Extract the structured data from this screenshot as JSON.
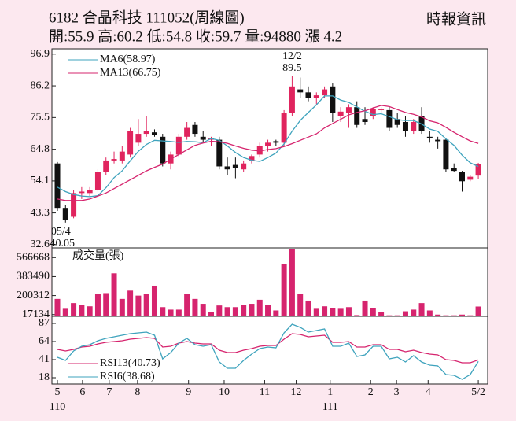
{
  "header": {
    "title": "6182 合晶科技 111052(周線圖)",
    "source": "時報資訊",
    "summary": "開:55.9 高:60.2 低:54.8 收:59.7 量:94880 漲 4.2"
  },
  "chart_data": [
    {
      "type": "candlestick",
      "up_color": "#e0245e",
      "down_color": "#111111",
      "open": [
        60,
        45,
        42,
        50,
        50,
        51,
        57,
        61,
        61,
        63,
        67,
        70,
        70.5,
        69,
        60,
        63,
        69,
        73,
        69,
        68,
        68,
        59,
        59.5,
        58,
        61,
        63,
        66,
        67.5,
        67,
        77,
        85,
        84,
        82,
        83,
        86,
        76,
        77,
        79,
        75,
        76,
        78,
        78,
        75,
        74,
        71,
        76,
        69,
        68,
        68,
        58.5,
        57,
        54.5,
        55.9
      ],
      "high": [
        60.5,
        46,
        51,
        52,
        52,
        58,
        62,
        64,
        66,
        72,
        75,
        76,
        71.5,
        70,
        64,
        70,
        74,
        74,
        71,
        69,
        69,
        62,
        62,
        61,
        63,
        67,
        68,
        68,
        78,
        89.5,
        89,
        86,
        84,
        86,
        87,
        79,
        80,
        81,
        79,
        79,
        79,
        79,
        77,
        76,
        75,
        79,
        71,
        69,
        68.5,
        60,
        57.5,
        56,
        60.2
      ],
      "low": [
        44,
        40.05,
        41.5,
        48,
        49,
        50.5,
        56,
        60,
        60,
        62,
        66,
        69,
        69,
        59,
        58,
        62,
        68,
        69,
        67,
        66,
        58,
        56,
        55,
        57,
        60,
        62,
        64,
        66,
        66,
        76,
        82,
        81,
        80,
        82,
        74,
        74,
        72,
        72,
        73,
        75,
        77,
        71,
        72,
        69,
        70,
        70,
        67,
        65,
        57,
        57,
        50.5,
        54,
        54.8
      ],
      "close": [
        45,
        41,
        50,
        50.5,
        51,
        57,
        61,
        61.5,
        64,
        71,
        70,
        71,
        69.5,
        60,
        63,
        69,
        72,
        70,
        68,
        68.5,
        59,
        58,
        58.5,
        60,
        62.5,
        66,
        67,
        67,
        77,
        86,
        84,
        82,
        83,
        85,
        77,
        77.5,
        79,
        73,
        74,
        78.5,
        78.5,
        72,
        73,
        71,
        74,
        71,
        68.5,
        67.5,
        58,
        57.5,
        54,
        55.5,
        59.7
      ],
      "series": [
        {
          "name": "MA6(58.97)",
          "color": "#3ea3bd",
          "values": [
            52,
            50.5,
            49.5,
            49,
            48.8,
            49.1,
            51.8,
            55.2,
            57.5,
            60.9,
            64.1,
            66.4,
            67.8,
            67.6,
            67.4,
            67.1,
            67.4,
            67.3,
            67,
            68.4,
            67.8,
            65.9,
            63.7,
            62,
            61.1,
            60.7,
            62,
            63.5,
            66.6,
            70.9,
            74.5,
            77.2,
            79.8,
            82.8,
            82.8,
            81.4,
            80.6,
            79.1,
            77.6,
            76.5,
            76.8,
            75.8,
            74.8,
            74.5,
            74.5,
            73.3,
            71.6,
            70.8,
            68.3,
            66.1,
            62.8,
            60.2,
            58.97
          ]
        },
        {
          "name": "MA13(66.75)",
          "color": "#d6246e",
          "values": [
            48,
            47.5,
            47.5,
            47.5,
            48,
            49,
            50,
            51.5,
            53,
            54.5,
            56,
            57.5,
            58.7,
            59.8,
            61.5,
            63,
            64.6,
            66.1,
            66.9,
            67.5,
            67.3,
            66.8,
            65.9,
            65.1,
            64.5,
            64.2,
            64.7,
            65,
            65.7,
            66.7,
            67.8,
            68.9,
            70,
            72,
            73.5,
            74.9,
            76.4,
            77.2,
            77.8,
            78.7,
            79.6,
            79.2,
            78.2,
            77.2,
            76.6,
            75.7,
            74.4,
            73.7,
            72.2,
            70.5,
            69,
            67.6,
            66.75
          ]
        }
      ],
      "annotations": {
        "high_date": "12/2",
        "low_date": "05/4"
      },
      "ylim": [
        31.5,
        98.7
      ],
      "yticks": [
        96.9,
        86.2,
        75.5,
        64.8,
        54.1,
        43.3,
        32.6
      ]
    },
    {
      "type": "bar",
      "title": "成交量(張)",
      "color": "#d6246e",
      "values": [
        168000,
        73000,
        128000,
        113000,
        97000,
        216000,
        224000,
        415000,
        168000,
        248000,
        200000,
        216000,
        296000,
        89000,
        65000,
        65000,
        216000,
        168000,
        121000,
        41000,
        105000,
        89000,
        89000,
        113000,
        121000,
        160000,
        113000,
        57000,
        503000,
        646000,
        216000,
        152000,
        73000,
        97000,
        81000,
        73000,
        89000,
        12000,
        152000,
        81000,
        41000,
        10000,
        10000,
        49000,
        65000,
        128000,
        57000,
        17000,
        10000,
        10000,
        17000,
        10000,
        94880
      ],
      "ylim": [
        0,
        660000
      ],
      "yticks": [
        566668,
        383490,
        200312,
        17134
      ]
    },
    {
      "type": "line",
      "series": [
        {
          "name": "RSI13(40.73)",
          "color": "#d6246e",
          "values": [
            54,
            52,
            54,
            57,
            58,
            61,
            63,
            64,
            65,
            67,
            68,
            69,
            68,
            57,
            58,
            62,
            64,
            62,
            61,
            61,
            53,
            50,
            50,
            53,
            55,
            58,
            59,
            59,
            67,
            74,
            73,
            70,
            71,
            72,
            63,
            63,
            64,
            57,
            57,
            60,
            60,
            54,
            54,
            51,
            53,
            50,
            48,
            47,
            41,
            40,
            37,
            37,
            40.73
          ]
        },
        {
          "name": "RSI6(38.68)",
          "color": "#3ea3bd",
          "values": [
            44,
            40,
            52,
            58,
            60,
            65,
            68,
            70,
            72,
            74,
            75,
            76,
            72,
            42,
            50,
            62,
            68,
            60,
            58,
            60,
            38,
            30,
            30,
            40,
            48,
            55,
            57,
            56,
            75,
            86,
            82,
            76,
            78,
            80,
            58,
            58,
            62,
            45,
            47,
            58,
            58,
            42,
            44,
            38,
            46,
            38,
            34,
            33,
            22,
            21,
            16,
            22,
            38.68
          ]
        }
      ],
      "ylim": [
        10,
        96
      ],
      "yticks": [
        87,
        64,
        41,
        18
      ],
      "xticks": [
        {
          "value": 0,
          "label": "5"
        },
        {
          "value": 3.1,
          "label": "6"
        },
        {
          "value": 6.4,
          "label": "7"
        },
        {
          "value": 9.9,
          "label": "8"
        },
        {
          "value": 16.2,
          "label": "9"
        },
        {
          "value": 20.6,
          "label": "10"
        },
        {
          "value": 25.6,
          "label": "11"
        },
        {
          "value": 29.5,
          "label": "12"
        },
        {
          "value": 33.7,
          "label": "1"
        },
        {
          "value": 38.7,
          "label": "2"
        },
        {
          "value": 41.9,
          "label": "3"
        },
        {
          "value": 45.8,
          "label": "4"
        },
        {
          "value": 52,
          "label": "5/2"
        }
      ],
      "year_ticks": [
        {
          "value": 0,
          "label": "110"
        },
        {
          "value": 33.7,
          "label": "111"
        }
      ]
    }
  ]
}
